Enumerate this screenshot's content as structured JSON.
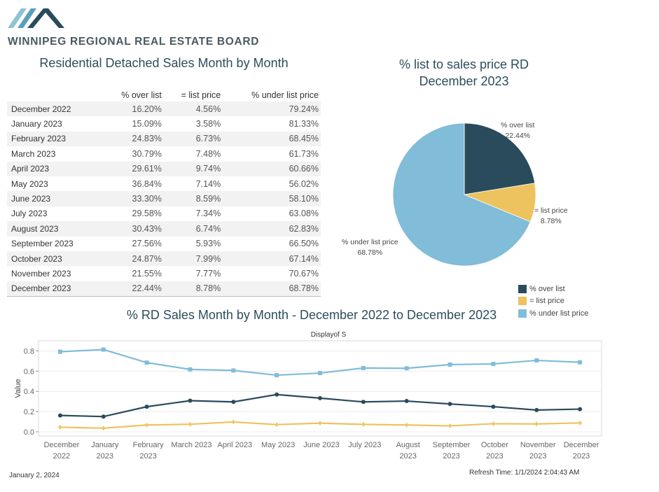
{
  "header": {
    "org_name": "WINNIPEG REGIONAL REAL ESTATE BOARD",
    "logo_colors": [
      "#8fc3d6",
      "#5c9fbb",
      "#2a4b5c"
    ]
  },
  "table": {
    "title": "Residential Detached Sales Month by Month",
    "columns": [
      "",
      "% over list",
      "= list price",
      "% under list price"
    ],
    "rows": [
      {
        "month": "December 2022",
        "over": "16.20%",
        "list": "4.56%",
        "under": "79.24%"
      },
      {
        "month": "January 2023",
        "over": "15.09%",
        "list": "3.58%",
        "under": "81.33%"
      },
      {
        "month": "February 2023",
        "over": "24.83%",
        "list": "6.73%",
        "under": "68.45%"
      },
      {
        "month": "March 2023",
        "over": "30.79%",
        "list": "7.48%",
        "under": "61.73%"
      },
      {
        "month": "April 2023",
        "over": "29.61%",
        "list": "9.74%",
        "under": "60.66%"
      },
      {
        "month": "May 2023",
        "over": "36.84%",
        "list": "7.14%",
        "under": "56.02%"
      },
      {
        "month": "June 2023",
        "over": "33.30%",
        "list": "8.59%",
        "under": "58.10%"
      },
      {
        "month": "July 2023",
        "over": "29.58%",
        "list": "7.34%",
        "under": "63.08%"
      },
      {
        "month": "August 2023",
        "over": "30.43%",
        "list": "6.74%",
        "under": "62.83%"
      },
      {
        "month": "September 2023",
        "over": "27.56%",
        "list": "5.93%",
        "under": "66.50%"
      },
      {
        "month": "October 2023",
        "over": "24.87%",
        "list": "7.99%",
        "under": "67.14%"
      },
      {
        "month": "November 2023",
        "over": "21.55%",
        "list": "7.77%",
        "under": "70.67%"
      },
      {
        "month": "December 2023",
        "over": "22.44%",
        "list": "8.78%",
        "under": "68.78%"
      }
    ]
  },
  "pie": {
    "title_line1": "% list to sales price RD",
    "title_line2": "December 2023",
    "slices": [
      {
        "name": "% over list",
        "value_label": "22.44%",
        "value": 22.44,
        "color": "#2a4b5c"
      },
      {
        "name": "= list price",
        "value_label": "8.78%",
        "value": 8.78,
        "color": "#ecc35e"
      },
      {
        "name": "% under list price",
        "value_label": "68.78%",
        "value": 68.78,
        "color": "#81bcd8"
      }
    ]
  },
  "legend": {
    "items": [
      {
        "label": "% over list",
        "color": "#2a4b5c"
      },
      {
        "label": "= list price",
        "color": "#ecc35e"
      },
      {
        "label": "% under list price",
        "color": "#81bcd8"
      }
    ]
  },
  "line": {
    "title": "% RD Sales Month by Month - December 2022 to December 2023",
    "subtitle": "Displayof S",
    "ylabel": "Value"
  },
  "chart_data": {
    "type": "line",
    "title": "% RD Sales Month by Month - December 2022 to December 2023",
    "categories": [
      [
        "December",
        "2022"
      ],
      [
        "January",
        "2023"
      ],
      [
        "February",
        "2023"
      ],
      [
        "March 2023"
      ],
      [
        "April 2023"
      ],
      [
        "May 2023"
      ],
      [
        "June 2023"
      ],
      [
        "July 2023"
      ],
      [
        "August",
        "2023"
      ],
      [
        "September",
        "2023"
      ],
      [
        "October",
        "2023"
      ],
      [
        "November",
        "2023"
      ],
      [
        "December",
        "2023"
      ]
    ],
    "ylabel": "Value",
    "ylim": [
      0,
      0.9
    ],
    "yticks": [
      "0.0",
      "0.2",
      "0.4",
      "0.6",
      "0.8"
    ],
    "grid": true,
    "series": [
      {
        "name": "% under list price",
        "color": "#81bcd8",
        "marker": "square",
        "values": [
          0.7924,
          0.8133,
          0.6845,
          0.6173,
          0.6066,
          0.5602,
          0.581,
          0.6308,
          0.6283,
          0.665,
          0.6714,
          0.7067,
          0.6878
        ]
      },
      {
        "name": "% over list",
        "color": "#2a4b5c",
        "marker": "circle",
        "values": [
          0.162,
          0.1509,
          0.2483,
          0.3079,
          0.2961,
          0.3684,
          0.333,
          0.2958,
          0.3043,
          0.2756,
          0.2487,
          0.2155,
          0.2244
        ]
      },
      {
        "name": "= list price",
        "color": "#ecc35e",
        "marker": "plus",
        "values": [
          0.0456,
          0.0358,
          0.0673,
          0.0748,
          0.0974,
          0.0714,
          0.0859,
          0.0734,
          0.0674,
          0.0593,
          0.0799,
          0.0777,
          0.0878
        ]
      }
    ]
  },
  "footer": {
    "date": "January 2, 2024",
    "refresh": "Refresh Time: 1/1/2024 2:04:43 AM"
  }
}
